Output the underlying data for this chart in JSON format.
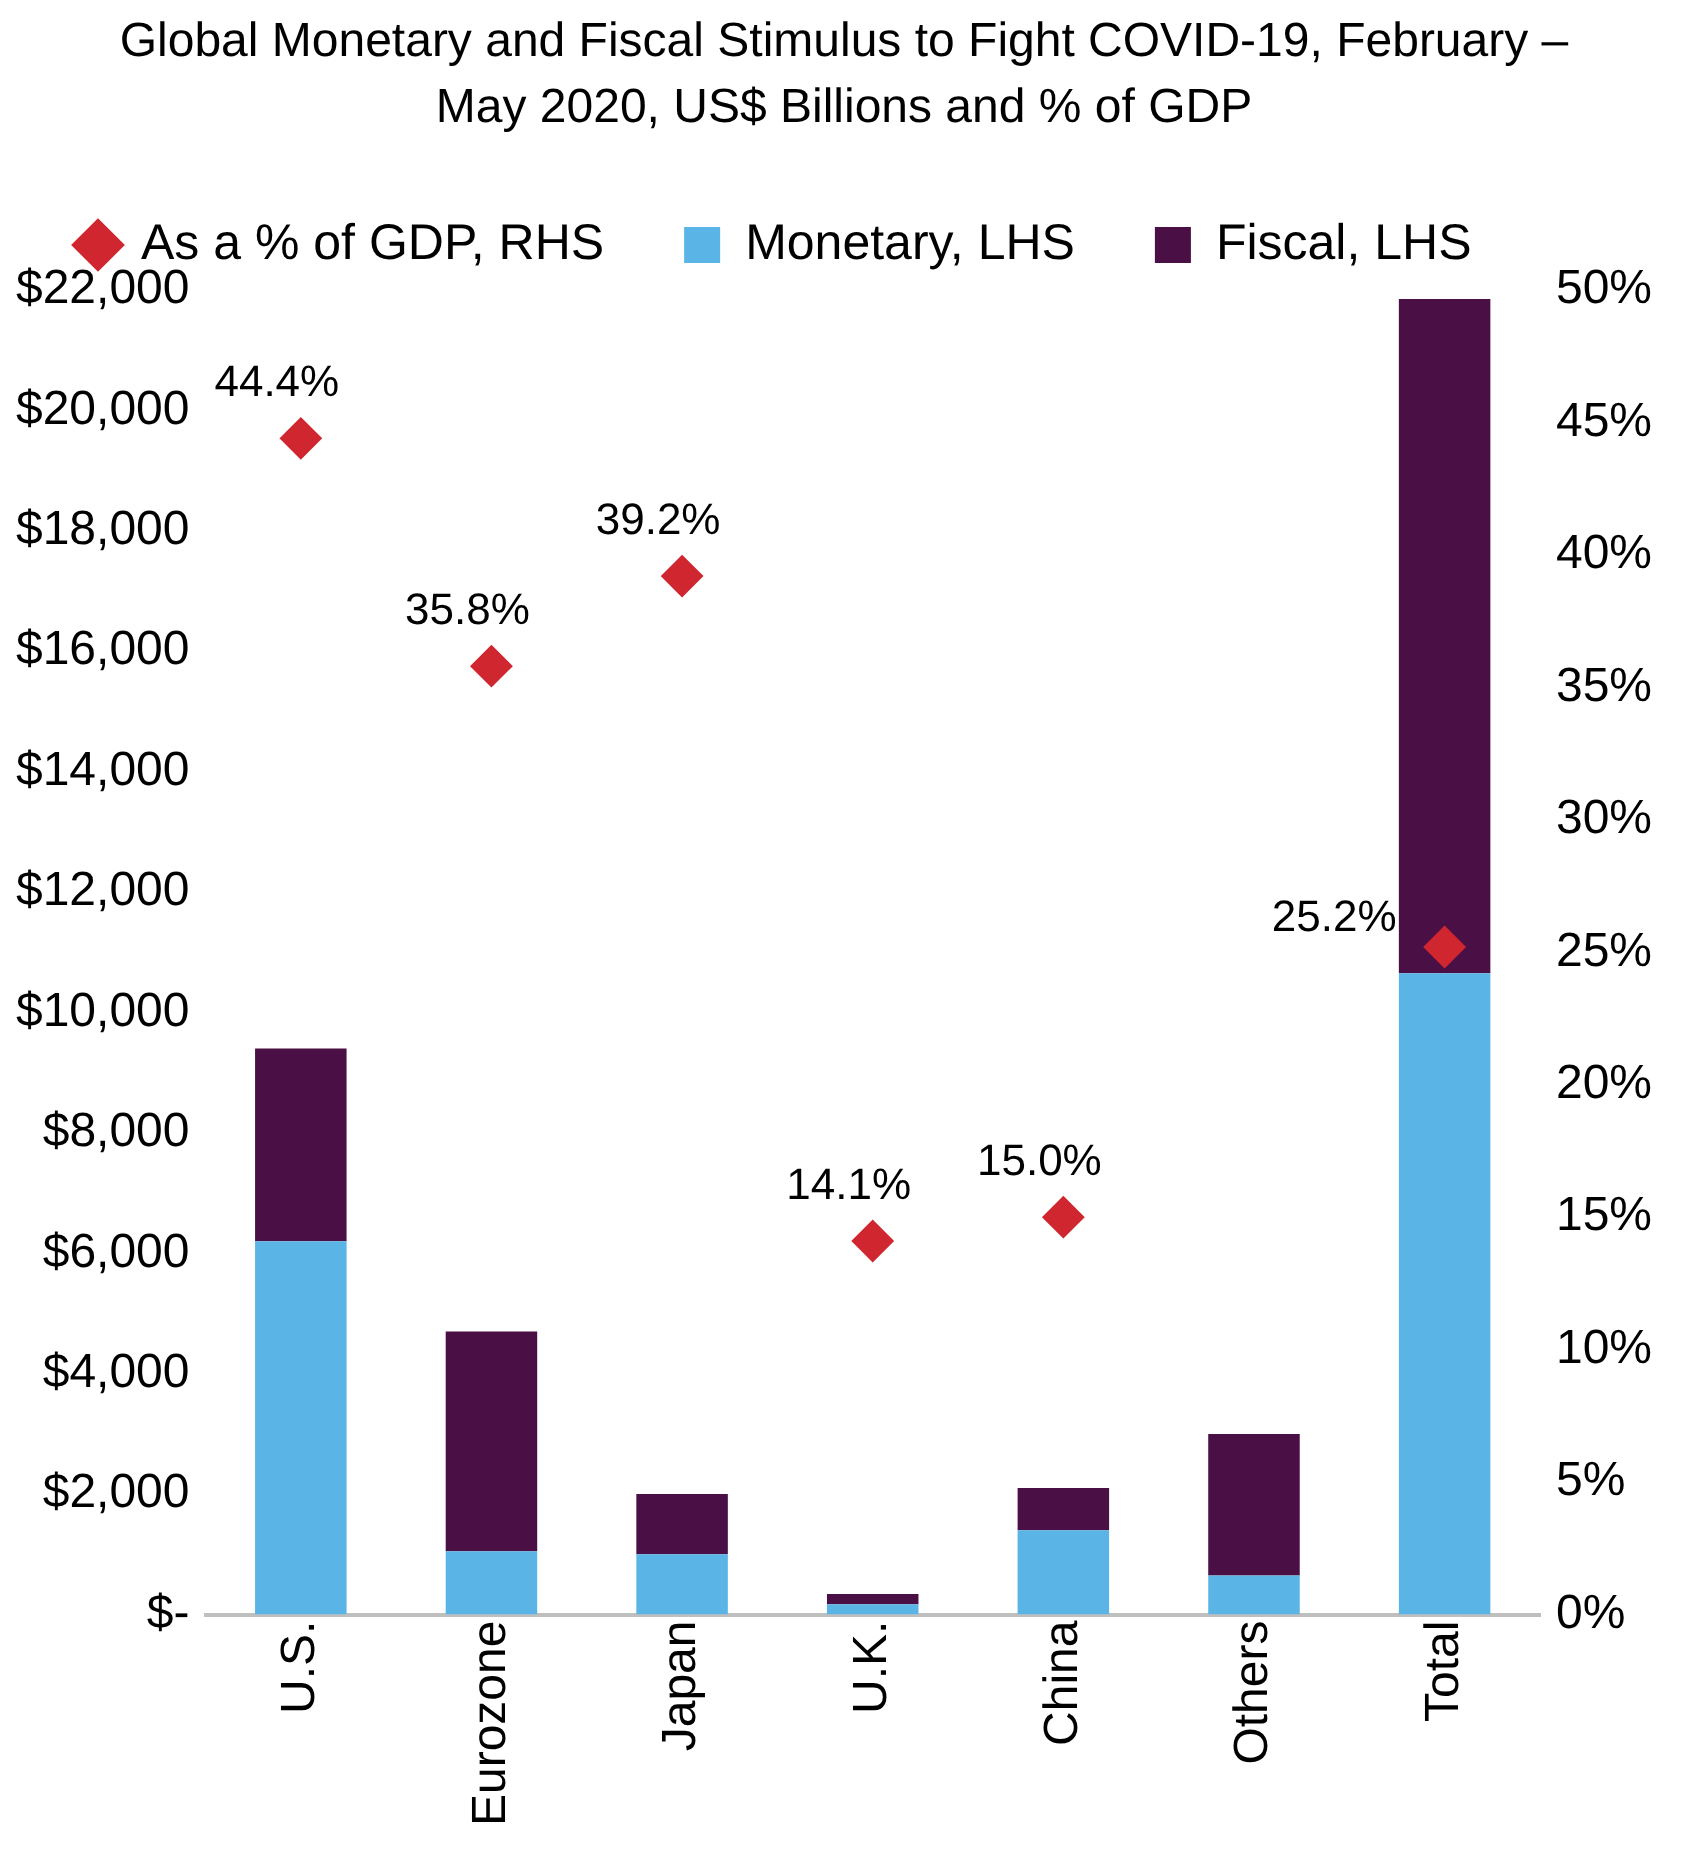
{
  "chart_data": {
    "type": "bar",
    "title": "Global Monetary and Fiscal Stimulus to Fight COVID-19, February – May 2020, US$ Billions and % of GDP",
    "categories": [
      "U.S.",
      "Eurozone",
      "Japan",
      "U.K.",
      "China",
      "Others",
      "Total"
    ],
    "stacked": true,
    "series": [
      {
        "name": "Monetary, LHS",
        "color": "#5ab4e5",
        "values": [
          6200,
          1050,
          1000,
          170,
          1400,
          650,
          10650
        ]
      },
      {
        "name": "Fiscal, LHS",
        "color": "#4a0f45",
        "values": [
          3200,
          3650,
          1000,
          170,
          700,
          2350,
          11200
        ]
      },
      {
        "name": "As a % of GDP, RHS",
        "type": "scatter",
        "axis": "y2",
        "marker": "diamond",
        "color": "#d0262f",
        "values": [
          44.4,
          35.8,
          39.2,
          14.1,
          15.0,
          null,
          25.2
        ],
        "value_labels": [
          "44.4%",
          "35.8%",
          "39.2%",
          "14.1%",
          "15.0%",
          null,
          "25.2%"
        ]
      }
    ],
    "ylim": [
      0,
      22000
    ],
    "yticks": [
      {
        "value": 0,
        "label": "$-"
      },
      {
        "value": 2000,
        "label": "$2,000"
      },
      {
        "value": 4000,
        "label": "$4,000"
      },
      {
        "value": 6000,
        "label": "$6,000"
      },
      {
        "value": 8000,
        "label": "$8,000"
      },
      {
        "value": 10000,
        "label": "$10,000"
      },
      {
        "value": 12000,
        "label": "$12,000"
      },
      {
        "value": 14000,
        "label": "$14,000"
      },
      {
        "value": 16000,
        "label": "$16,000"
      },
      {
        "value": 18000,
        "label": "$18,000"
      },
      {
        "value": 20000,
        "label": "$20,000"
      },
      {
        "value": 22000,
        "label": "$22,000"
      }
    ],
    "y2lim": [
      0,
      50
    ],
    "y2ticks": [
      {
        "value": 0,
        "label": "0%"
      },
      {
        "value": 5,
        "label": "5%"
      },
      {
        "value": 10,
        "label": "10%"
      },
      {
        "value": 15,
        "label": "15%"
      },
      {
        "value": 20,
        "label": "20%"
      },
      {
        "value": 25,
        "label": "25%"
      },
      {
        "value": 30,
        "label": "30%"
      },
      {
        "value": 35,
        "label": "35%"
      },
      {
        "value": 40,
        "label": "40%"
      },
      {
        "value": 45,
        "label": "45%"
      },
      {
        "value": 50,
        "label": "50%"
      }
    ],
    "grid": false,
    "legend": "top"
  }
}
